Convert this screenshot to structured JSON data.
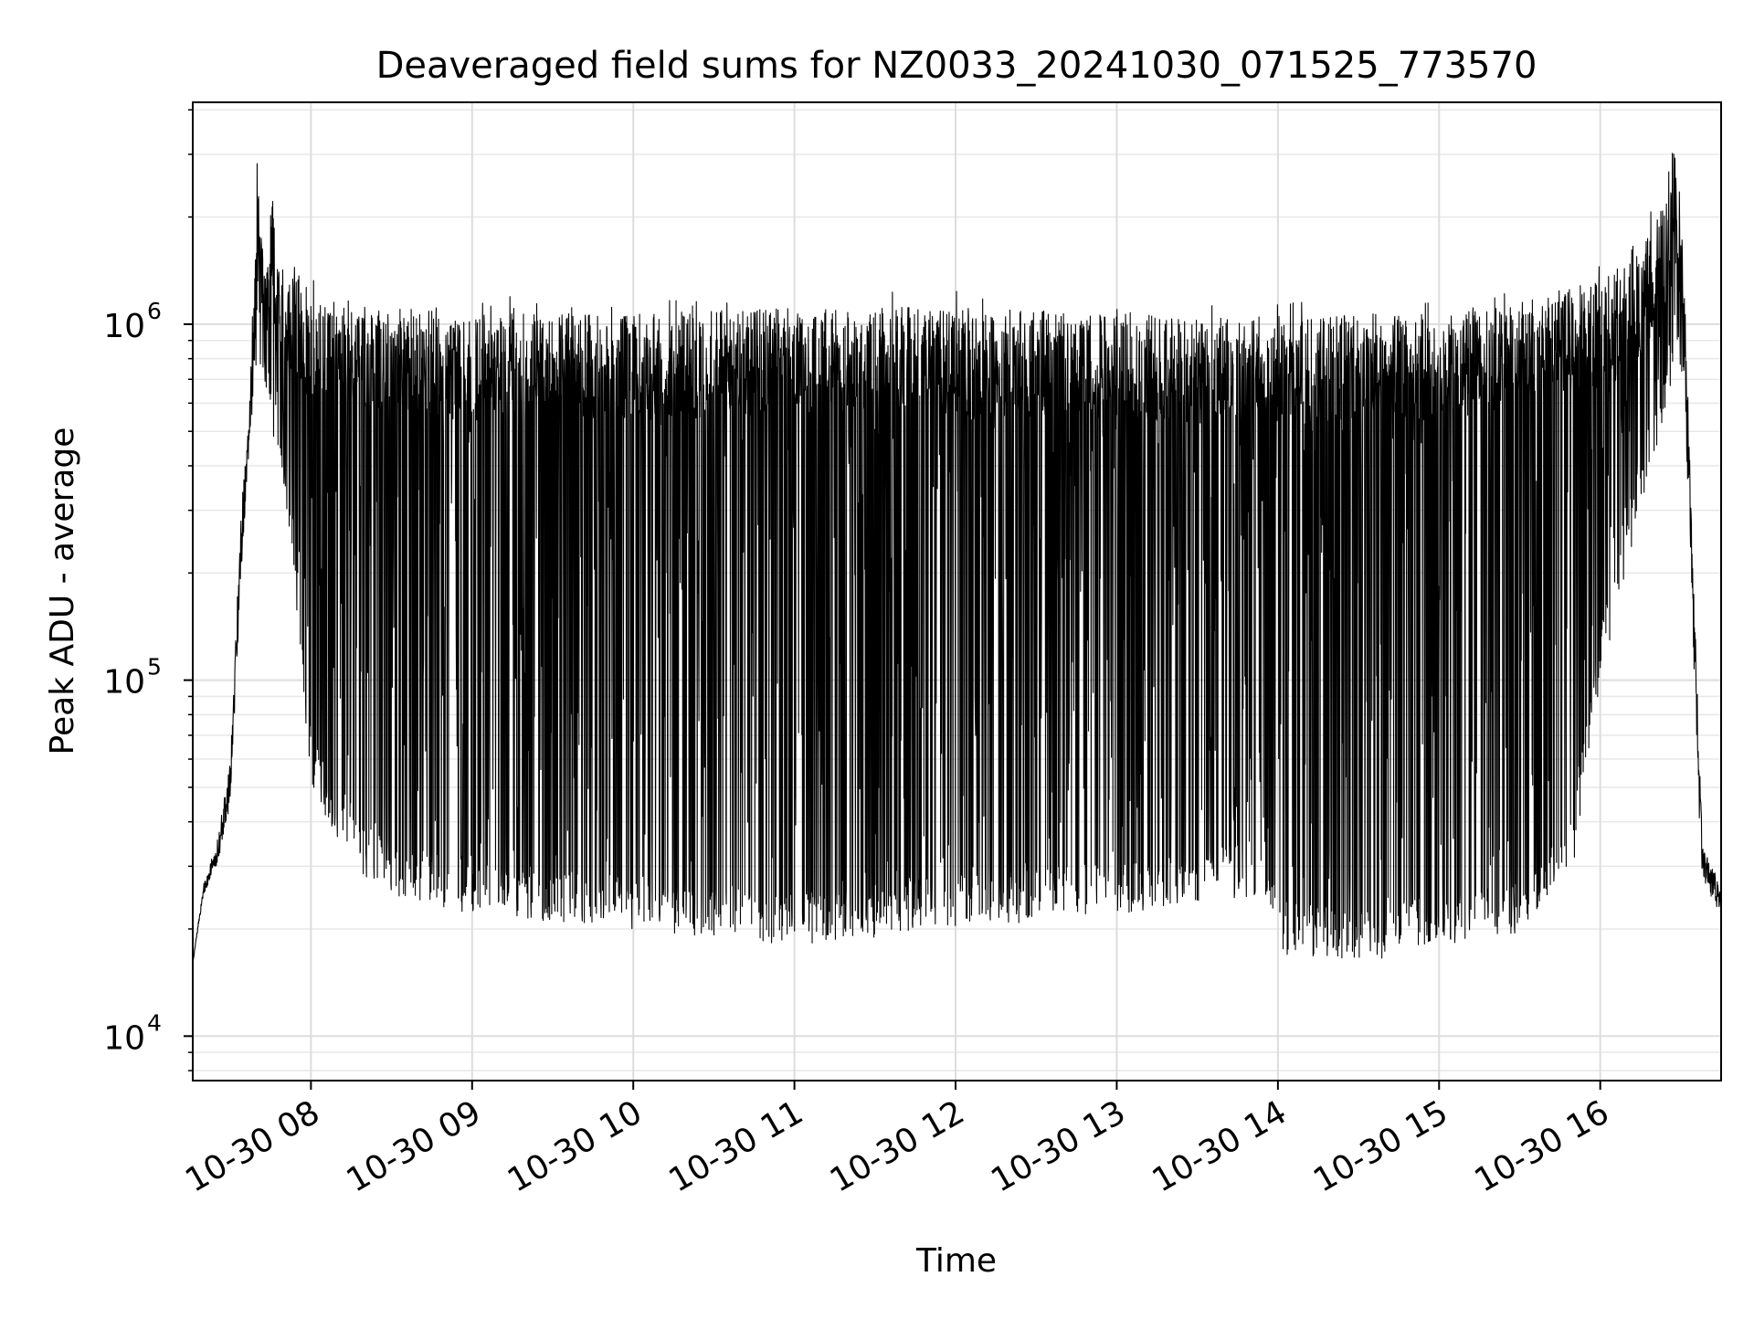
{
  "chart_data": {
    "type": "line",
    "title": "Deaveraged field sums for NZ0033_20241030_071525_773570",
    "xlabel": "Time",
    "ylabel": "Peak ADU - average",
    "yscale": "log",
    "x_range": [
      "2024-10-30 07:16",
      "2024-10-30 16:45"
    ],
    "ylim": [
      7500,
      4200000
    ],
    "x_ticks": [
      {
        "value": "2024-10-30 08:00",
        "label": "10-30 08"
      },
      {
        "value": "2024-10-30 09:00",
        "label": "10-30 09"
      },
      {
        "value": "2024-10-30 10:00",
        "label": "10-30 10"
      },
      {
        "value": "2024-10-30 11:00",
        "label": "10-30 11"
      },
      {
        "value": "2024-10-30 12:00",
        "label": "10-30 12"
      },
      {
        "value": "2024-10-30 13:00",
        "label": "10-30 13"
      },
      {
        "value": "2024-10-30 14:00",
        "label": "10-30 14"
      },
      {
        "value": "2024-10-30 15:00",
        "label": "10-30 15"
      },
      {
        "value": "2024-10-30 16:00",
        "label": "10-30 16"
      }
    ],
    "y_ticks": [
      {
        "value": 10000,
        "base": "10",
        "exp": "4"
      },
      {
        "value": 100000,
        "base": "10",
        "exp": "5"
      },
      {
        "value": 1000000,
        "base": "10",
        "exp": "6"
      }
    ],
    "grid": true,
    "line_color": "#000000",
    "series": [
      {
        "name": "",
        "upper_envelope": [
          [
            "2024-10-30 07:16",
            16000
          ],
          [
            "2024-10-30 07:20",
            27000
          ],
          [
            "2024-10-30 07:25",
            35000
          ],
          [
            "2024-10-30 07:30",
            60000
          ],
          [
            "2024-10-30 07:34",
            300000
          ],
          [
            "2024-10-30 07:37",
            550000
          ],
          [
            "2024-10-30 07:40",
            2900000
          ],
          [
            "2024-10-30 07:43",
            1500000
          ],
          [
            "2024-10-30 07:45",
            2500000
          ],
          [
            "2024-10-30 07:50",
            1700000
          ],
          [
            "2024-10-30 07:55",
            1600000
          ],
          [
            "2024-10-30 08:00",
            1400000
          ],
          [
            "2024-10-30 08:15",
            1300000
          ],
          [
            "2024-10-30 08:30",
            1250000
          ],
          [
            "2024-10-30 09:00",
            1200000
          ],
          [
            "2024-10-30 10:00",
            1200000
          ],
          [
            "2024-10-30 11:00",
            1250000
          ],
          [
            "2024-10-30 12:00",
            1250000
          ],
          [
            "2024-10-30 13:00",
            1200000
          ],
          [
            "2024-10-30 14:00",
            1150000
          ],
          [
            "2024-10-30 14:30",
            1200000
          ],
          [
            "2024-10-30 15:00",
            1200000
          ],
          [
            "2024-10-30 15:30",
            1300000
          ],
          [
            "2024-10-30 16:00",
            1500000
          ],
          [
            "2024-10-30 16:15",
            1800000
          ],
          [
            "2024-10-30 16:25",
            2600000
          ],
          [
            "2024-10-30 16:28",
            3400000
          ],
          [
            "2024-10-30 16:31",
            1900000
          ],
          [
            "2024-10-30 16:33",
            500000
          ],
          [
            "2024-10-30 16:36",
            100000
          ],
          [
            "2024-10-30 16:38",
            35000
          ],
          [
            "2024-10-30 16:42",
            30000
          ],
          [
            "2024-10-30 16:45",
            25000
          ]
        ],
        "lower_envelope": [
          [
            "2024-10-30 07:16",
            16000
          ],
          [
            "2024-10-30 07:20",
            25000
          ],
          [
            "2024-10-30 07:25",
            30000
          ],
          [
            "2024-10-30 07:30",
            45000
          ],
          [
            "2024-10-30 07:34",
            200000
          ],
          [
            "2024-10-30 07:37",
            450000
          ],
          [
            "2024-10-30 07:40",
            800000
          ],
          [
            "2024-10-30 07:43",
            600000
          ],
          [
            "2024-10-30 07:50",
            350000
          ],
          [
            "2024-10-30 07:55",
            150000
          ],
          [
            "2024-10-30 08:00",
            50000
          ],
          [
            "2024-10-30 08:15",
            30000
          ],
          [
            "2024-10-30 08:30",
            25000
          ],
          [
            "2024-10-30 09:00",
            22000
          ],
          [
            "2024-10-30 10:00",
            20000
          ],
          [
            "2024-10-30 11:00",
            18000
          ],
          [
            "2024-10-30 12:00",
            20000
          ],
          [
            "2024-10-30 13:00",
            22000
          ],
          [
            "2024-10-30 13:55",
            25000
          ],
          [
            "2024-10-30 14:00",
            17000
          ],
          [
            "2024-10-30 14:30",
            16000
          ],
          [
            "2024-10-30 15:00",
            18000
          ],
          [
            "2024-10-30 15:30",
            19000
          ],
          [
            "2024-10-30 15:50",
            30000
          ],
          [
            "2024-10-30 16:00",
            100000
          ],
          [
            "2024-10-30 16:15",
            300000
          ],
          [
            "2024-10-30 16:25",
            600000
          ],
          [
            "2024-10-30 16:28",
            800000
          ],
          [
            "2024-10-30 16:31",
            700000
          ],
          [
            "2024-10-30 16:33",
            300000
          ],
          [
            "2024-10-30 16:36",
            60000
          ],
          [
            "2024-10-30 16:38",
            25000
          ],
          [
            "2024-10-30 16:42",
            24000
          ],
          [
            "2024-10-30 16:45",
            22000
          ]
        ],
        "typical_high": 900000
      }
    ]
  }
}
